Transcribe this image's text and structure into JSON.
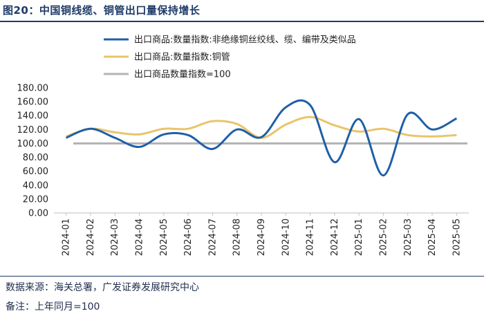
{
  "header": {
    "title": "图20：中国铜线缆、铜管出口量保持增长"
  },
  "footer": {
    "source": "数据来源：海关总署，广发证券发展研究中心",
    "note": "备注：上年同月=100"
  },
  "chart_data": {
    "type": "line",
    "title": "图20：中国铜线缆、铜管出口量保持增长",
    "categories": [
      "2024-01",
      "2024-02",
      "2024-03",
      "2024-04",
      "2024-05",
      "2024-06",
      "2024-07",
      "2024-08",
      "2024-09",
      "2024-10",
      "2024-11",
      "2024-12",
      "2025-01",
      "2025-02",
      "2025-03",
      "2025-04",
      "2025-05"
    ],
    "ylim": [
      0,
      180
    ],
    "yticks": [
      "0.00",
      "20.00",
      "40.00",
      "60.00",
      "80.00",
      "100.00",
      "120.00",
      "140.00",
      "160.00",
      "180.00"
    ],
    "series": [
      {
        "name": "出口商品:数量指数:非绝缘铜丝绞线、缆、编带及类似品",
        "color": "#1f5fa8",
        "values": [
          108,
          121,
          108,
          95,
          113,
          112,
          92,
          120,
          109,
          152,
          155,
          73,
          135,
          54,
          142,
          120,
          136
        ]
      },
      {
        "name": "出口商品:数量指数:铜管",
        "color": "#e9c46a",
        "values": [
          110,
          121,
          116,
          113,
          121,
          121,
          132,
          128,
          108,
          127,
          138,
          126,
          117,
          121,
          112,
          110,
          112
        ]
      },
      {
        "name": "出口商品数量指数=100",
        "color": "#b3b3b3",
        "values": [
          100,
          100,
          100,
          100,
          100,
          100,
          100,
          100,
          100,
          100,
          100,
          100,
          100,
          100,
          100,
          100,
          100
        ]
      }
    ]
  }
}
